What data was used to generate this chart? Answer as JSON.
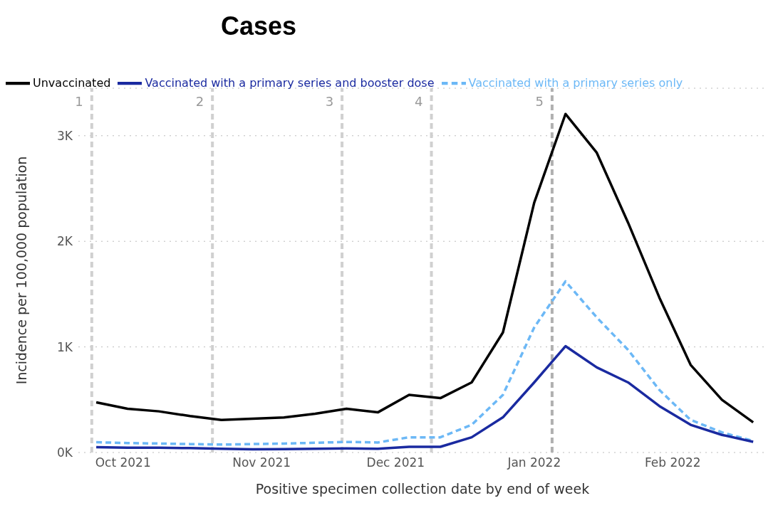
{
  "chart_data": {
    "type": "line",
    "title": "Cases",
    "xlabel": "Positive specimen collection date by end of week",
    "ylabel": "Incidence per 100,000 population",
    "x": [
      "2021-09-25",
      "2021-10-02",
      "2021-10-09",
      "2021-10-16",
      "2021-10-23",
      "2021-10-30",
      "2021-11-06",
      "2021-11-13",
      "2021-11-20",
      "2021-11-27",
      "2021-12-04",
      "2021-12-11",
      "2021-12-18",
      "2021-12-25",
      "2022-01-01",
      "2022-01-08",
      "2022-01-15",
      "2022-01-22",
      "2022-01-29",
      "2022-02-05",
      "2022-02-12",
      "2022-02-19"
    ],
    "series": [
      {
        "name": "Unvaccinated",
        "color": "#000000",
        "line_style": "solid",
        "values": [
          475,
          415,
          390,
          345,
          309,
          320,
          332,
          367,
          415,
          380,
          546,
          515,
          664,
          1137,
          2366,
          3206,
          2839,
          2177,
          1468,
          830,
          499,
          286
        ]
      },
      {
        "name": "Vaccinated with a primary series only",
        "color": "#6cb8f6",
        "line_style": "dashed",
        "values": [
          97,
          90,
          85,
          80,
          75,
          80,
          85,
          92,
          100,
          95,
          144,
          144,
          262,
          546,
          1184,
          1621,
          1279,
          972,
          593,
          309,
          191,
          109
        ]
      },
      {
        "name": "Vaccinated with a primary series and booster dose",
        "color": "#1a2aa0",
        "line_style": "solid",
        "values": [
          50,
          45,
          45,
          42,
          35,
          30,
          32,
          35,
          38,
          35,
          54,
          54,
          144,
          333,
          664,
          1007,
          806,
          664,
          440,
          262,
          167,
          101
        ]
      }
    ],
    "xlim": [
      "2021-09-21",
      "2022-02-22"
    ],
    "xticks": [
      {
        "value": "2021-10-01",
        "label": "Oct 2021"
      },
      {
        "value": "2021-11-01",
        "label": "Nov 2021"
      },
      {
        "value": "2021-12-01",
        "label": "Dec 2021"
      },
      {
        "value": "2022-01-01",
        "label": "Jan 2022"
      },
      {
        "value": "2022-02-01",
        "label": "Feb 2022"
      }
    ],
    "ylim": [
      0,
      3450
    ],
    "yticks": [
      {
        "value": 0,
        "label": "0K"
      },
      {
        "value": 1000,
        "label": "1K"
      },
      {
        "value": 2000,
        "label": "2K"
      },
      {
        "value": 3000,
        "label": "3K"
      }
    ],
    "grid": "y",
    "legend": "top left",
    "marker": "none",
    "ref_lines": [
      {
        "axis": "x",
        "value": "2021-09-24",
        "label": "1",
        "color": "#d0d0d0",
        "line_style": "dashed"
      },
      {
        "axis": "x",
        "value": "2021-10-21",
        "label": "2",
        "color": "#d0d0d0",
        "line_style": "dashed"
      },
      {
        "axis": "x",
        "value": "2021-11-19",
        "label": "3",
        "color": "#d0d0d0",
        "line_style": "dashed"
      },
      {
        "axis": "x",
        "value": "2021-12-09",
        "label": "4",
        "color": "#d0d0d0",
        "line_style": "dashed"
      },
      {
        "axis": "x",
        "value": "2022-01-05",
        "label": "5",
        "color": "#b0b0b0",
        "line_style": "dashed"
      }
    ]
  }
}
